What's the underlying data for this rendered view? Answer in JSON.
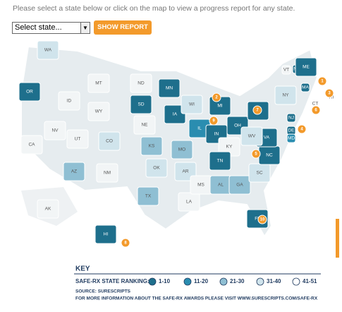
{
  "header": {
    "instruction": "Please select a state below or click on the map to view a progress report for any state."
  },
  "controls": {
    "select": "Select state...",
    "button": "SHOW REPORT"
  },
  "map": {
    "states": [
      {
        "label": "WA",
        "color": "#d0e4ec"
      },
      {
        "label": "OR",
        "color": "#1e6f8c"
      },
      {
        "label": "CA",
        "color": "#f2f5f6"
      },
      {
        "label": "NV",
        "color": "#f2f5f6"
      },
      {
        "label": "ID",
        "color": "#f2f5f6"
      },
      {
        "label": "MT",
        "color": "#f2f5f6"
      },
      {
        "label": "WY",
        "color": "#f2f5f6"
      },
      {
        "label": "UT",
        "color": "#f2f5f6"
      },
      {
        "label": "AZ",
        "color": "#8fbfd3"
      },
      {
        "label": "CO",
        "color": "#d0e4ec"
      },
      {
        "label": "NM",
        "color": "#f2f5f6"
      },
      {
        "label": "ND",
        "color": "#f2f5f6"
      },
      {
        "label": "SD",
        "color": "#1e6f8c"
      },
      {
        "label": "NE",
        "color": "#f2f5f6"
      },
      {
        "label": "KS",
        "color": "#8fbfd3"
      },
      {
        "label": "OK",
        "color": "#d0e4ec"
      },
      {
        "label": "TX",
        "color": "#8fbfd3"
      },
      {
        "label": "MN",
        "color": "#1e6f8c"
      },
      {
        "label": "IA",
        "color": "#1e6f8c"
      },
      {
        "label": "MO",
        "color": "#8fbfd3"
      },
      {
        "label": "AR",
        "color": "#d0e4ec"
      },
      {
        "label": "LA",
        "color": "#f2f5f6"
      },
      {
        "label": "WI",
        "color": "#d0e4ec"
      },
      {
        "label": "IL",
        "color": "#2a8db0"
      },
      {
        "label": "MI",
        "color": "#1e6f8c"
      },
      {
        "label": "IN",
        "color": "#1e6f8c"
      },
      {
        "label": "OH",
        "color": "#1e6f8c"
      },
      {
        "label": "KY",
        "color": "#f2f5f6"
      },
      {
        "label": "TN",
        "color": "#1e6f8c"
      },
      {
        "label": "MS",
        "color": "#f2f5f6"
      },
      {
        "label": "AL",
        "color": "#8fbfd3"
      },
      {
        "label": "GA",
        "color": "#8fbfd3"
      },
      {
        "label": "FL",
        "color": "#1e6f8c"
      },
      {
        "label": "SC",
        "color": "#d0e4ec"
      },
      {
        "label": "NC",
        "color": "#1e6f8c"
      },
      {
        "label": "VA",
        "color": "#1e6f8c"
      },
      {
        "label": "WV",
        "color": "#d0e4ec"
      },
      {
        "label": "PA",
        "color": "#1e6f8c"
      },
      {
        "label": "NY",
        "color": "#d0e4ec"
      },
      {
        "label": "VT",
        "color": "#f2f5f6"
      },
      {
        "label": "NH",
        "color": "#1e6f8c"
      },
      {
        "label": "ME",
        "color": "#1e6f8c"
      },
      {
        "label": "MA",
        "color": "#1e6f8c"
      },
      {
        "label": "RI",
        "color": "#f2f5f6"
      },
      {
        "label": "CT",
        "color": "#f2f5f6"
      },
      {
        "label": "NJ",
        "color": "#1e6f8c"
      },
      {
        "label": "DE",
        "color": "#1e6f8c"
      },
      {
        "label": "MD",
        "color": "#2a8db0"
      },
      {
        "label": "AK",
        "color": "#f2f5f6"
      },
      {
        "label": "HI",
        "color": "#1e6f8c"
      }
    ],
    "badges": [
      1,
      2,
      3,
      4,
      5,
      6,
      7,
      8,
      9,
      10
    ]
  },
  "key": {
    "title": "KEY",
    "ranking_label": "SAFE-RX STATE RANKING:",
    "items": [
      {
        "label": "1-10",
        "color": "#1e6f8c"
      },
      {
        "label": "11-20",
        "color": "#2a8db0"
      },
      {
        "label": "21-30",
        "color": "#8fbfd3"
      },
      {
        "label": "31-40",
        "color": "#d0e4ec"
      },
      {
        "label": "41-51",
        "color": "#ffffff"
      }
    ],
    "source": "SOURCE: SURESCRIPTS",
    "more_info": "FOR MORE INFORMATION ABOUT THE SAFE-RX AWARDS PLEASE VISIT WWW.SURESCRIPTS.COM/SAFE-RX"
  }
}
